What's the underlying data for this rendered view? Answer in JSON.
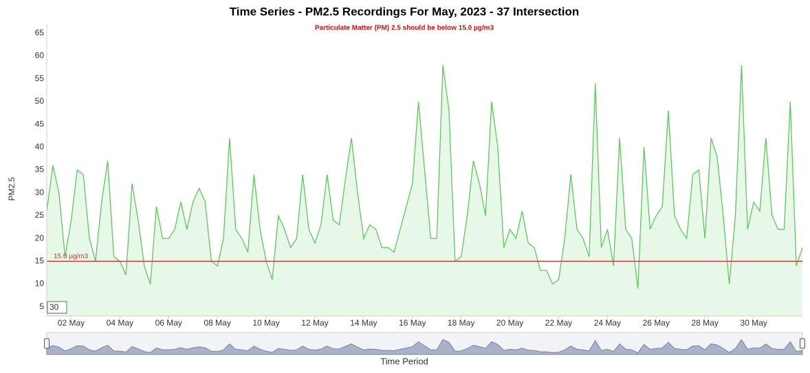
{
  "chart_data": {
    "type": "area",
    "title": "Time Series - PM2.5 Recordings For May, 2023 - 37 Intersection",
    "subtitle": "Particulate Matter (PM) 2.5 should be below 15.0 µg/m3",
    "y_label": "PM2.5",
    "x_label": "Time Period",
    "zoom_label": "30",
    "threshold": {
      "value": 15,
      "label": "15.0 µg/m3",
      "color": "#e03030"
    },
    "xlim": [
      1,
      32
    ],
    "ylim": [
      3,
      67
    ],
    "xticks": [
      {
        "value": 2,
        "label": "02 May"
      },
      {
        "value": 4,
        "label": "04 May"
      },
      {
        "value": 6,
        "label": "06 May"
      },
      {
        "value": 8,
        "label": "08 May"
      },
      {
        "value": 10,
        "label": "10 May"
      },
      {
        "value": 12,
        "label": "12 May"
      },
      {
        "value": 14,
        "label": "14 May"
      },
      {
        "value": 16,
        "label": "16 May"
      },
      {
        "value": 18,
        "label": "18 May"
      },
      {
        "value": 20,
        "label": "20 May"
      },
      {
        "value": 22,
        "label": "22 May"
      },
      {
        "value": 24,
        "label": "24 May"
      },
      {
        "value": 26,
        "label": "26 May"
      },
      {
        "value": 28,
        "label": "28 May"
      },
      {
        "value": 30,
        "label": "30 May"
      }
    ],
    "yticks": [
      5,
      10,
      15,
      20,
      25,
      30,
      35,
      40,
      45,
      50,
      55,
      60,
      65
    ],
    "grid": false,
    "series": [
      {
        "name": "PM2.5",
        "color": "#5cc85c",
        "fill": "#e8f8e8",
        "x": [
          1,
          1.25,
          1.5,
          1.75,
          2,
          2.25,
          2.5,
          2.75,
          3,
          3.25,
          3.5,
          3.75,
          4,
          4.25,
          4.5,
          4.75,
          5,
          5.25,
          5.5,
          5.75,
          6,
          6.25,
          6.5,
          6.75,
          7,
          7.25,
          7.5,
          7.75,
          8,
          8.25,
          8.5,
          8.75,
          9,
          9.25,
          9.5,
          9.75,
          10,
          10.25,
          10.5,
          10.75,
          11,
          11.25,
          11.5,
          11.75,
          12,
          12.25,
          12.5,
          12.75,
          13,
          13.25,
          13.5,
          13.75,
          14,
          14.25,
          14.5,
          14.75,
          15,
          15.25,
          15.5,
          15.75,
          16,
          16.25,
          16.5,
          16.75,
          17,
          17.25,
          17.5,
          17.75,
          18,
          18.25,
          18.5,
          18.75,
          19,
          19.25,
          19.5,
          19.75,
          20,
          20.25,
          20.5,
          20.75,
          21,
          21.25,
          21.5,
          21.75,
          22,
          22.25,
          22.5,
          22.75,
          23,
          23.25,
          23.5,
          23.75,
          24,
          24.25,
          24.5,
          24.75,
          25,
          25.25,
          25.5,
          25.75,
          26,
          26.25,
          26.5,
          26.75,
          27,
          27.25,
          27.5,
          27.75,
          28,
          28.25,
          28.5,
          28.75,
          29,
          29.25,
          29.5,
          29.75,
          30,
          30.25,
          30.5,
          30.75,
          31,
          31.25,
          31.5,
          31.75,
          32
        ],
        "values": [
          26,
          36,
          30,
          16,
          24,
          35,
          34,
          20,
          15,
          28,
          37,
          16,
          15,
          12,
          32,
          24,
          14,
          10,
          27,
          20,
          20,
          22,
          28,
          22,
          28,
          31,
          28,
          15,
          14,
          20,
          42,
          22,
          20,
          17,
          34,
          22,
          15,
          11,
          25,
          22,
          18,
          20,
          34,
          22,
          19,
          23,
          34,
          24,
          23,
          33,
          42,
          30,
          20,
          23,
          22,
          18,
          18,
          17,
          22,
          27,
          32,
          50,
          35,
          20,
          20,
          58,
          48,
          15,
          16,
          25,
          37,
          32,
          25,
          50,
          40,
          18,
          22,
          20,
          26,
          19,
          18,
          13,
          13,
          10,
          11,
          20,
          34,
          22,
          20,
          16,
          54,
          18,
          22,
          14,
          42,
          22,
          20,
          9,
          40,
          22,
          25,
          27,
          48,
          25,
          22,
          20,
          34,
          35,
          20,
          42,
          38,
          25,
          10,
          25,
          58,
          22,
          28,
          26,
          42,
          25,
          22,
          22,
          50,
          14,
          18
        ]
      }
    ]
  }
}
